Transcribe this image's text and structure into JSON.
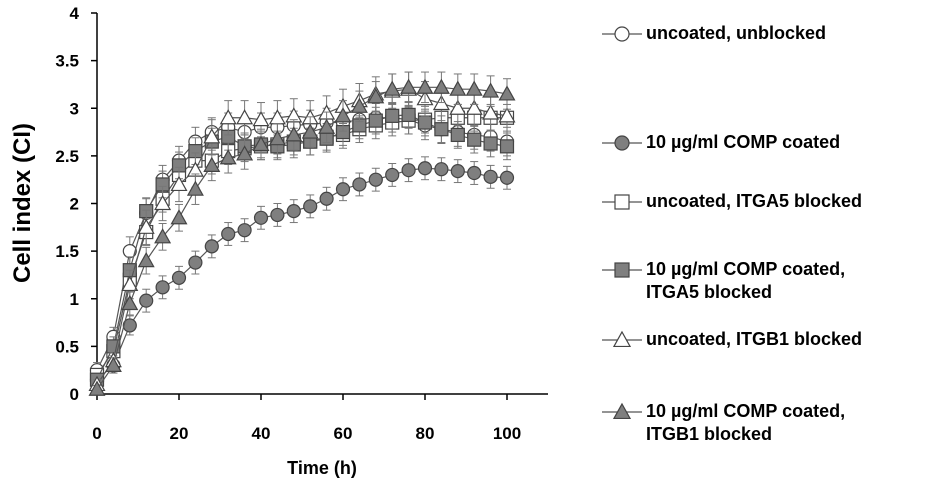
{
  "chart_data": {
    "type": "line",
    "xlabel": "Time (h)",
    "ylabel": "Cell index (CI)",
    "xlim": [
      0,
      110
    ],
    "ylim": [
      0,
      4
    ],
    "x_ticks": [
      0,
      20,
      40,
      60,
      80,
      100
    ],
    "y_ticks": [
      0,
      0.5,
      1,
      1.5,
      2,
      2.5,
      3,
      3.5,
      4
    ],
    "x_tick_labels": [
      "0",
      "20",
      "40",
      "60",
      "80",
      "100"
    ],
    "y_tick_labels": [
      "0",
      "0.5",
      "1",
      "1.5",
      "2",
      "2.5",
      "3",
      "3.5",
      "4"
    ],
    "grid": false,
    "legend_position": "right",
    "x": [
      0,
      4,
      8,
      12,
      16,
      20,
      24,
      28,
      32,
      36,
      40,
      44,
      48,
      52,
      56,
      60,
      64,
      68,
      72,
      76,
      80,
      84,
      88,
      92,
      96,
      100
    ],
    "series": [
      {
        "name": "uncoated, unblocked",
        "marker": "circle",
        "fill": "#ffffff",
        "values": [
          0.25,
          0.6,
          1.5,
          1.9,
          2.25,
          2.45,
          2.65,
          2.75,
          2.8,
          2.75,
          2.8,
          2.8,
          2.82,
          2.83,
          2.85,
          2.85,
          2.88,
          2.9,
          2.9,
          2.88,
          2.82,
          2.78,
          2.75,
          2.72,
          2.7,
          2.65
        ],
        "errors": [
          0.08,
          0.1,
          0.15,
          0.15,
          0.15,
          0.15,
          0.15,
          0.15,
          0.15,
          0.15,
          0.15,
          0.15,
          0.15,
          0.15,
          0.15,
          0.15,
          0.15,
          0.15,
          0.15,
          0.15,
          0.15,
          0.15,
          0.15,
          0.15,
          0.15,
          0.15
        ]
      },
      {
        "name": "10 µg/ml COMP coated",
        "marker": "circle",
        "fill": "#7f7f7f",
        "values": [
          0.15,
          0.3,
          0.72,
          0.98,
          1.12,
          1.22,
          1.38,
          1.55,
          1.68,
          1.72,
          1.85,
          1.88,
          1.92,
          1.97,
          2.05,
          2.15,
          2.2,
          2.25,
          2.3,
          2.35,
          2.37,
          2.36,
          2.34,
          2.32,
          2.28,
          2.27
        ],
        "errors": [
          0.05,
          0.08,
          0.1,
          0.12,
          0.12,
          0.12,
          0.12,
          0.12,
          0.12,
          0.12,
          0.12,
          0.12,
          0.12,
          0.12,
          0.12,
          0.12,
          0.12,
          0.12,
          0.12,
          0.12,
          0.12,
          0.12,
          0.12,
          0.12,
          0.12,
          0.12
        ]
      },
      {
        "name": "uncoated, ITGA5 blocked",
        "marker": "square",
        "fill": "#ffffff",
        "values": [
          0.2,
          0.45,
          1.2,
          1.7,
          2.05,
          2.3,
          2.45,
          2.45,
          2.55,
          2.58,
          2.6,
          2.62,
          2.65,
          2.65,
          2.7,
          2.72,
          2.78,
          2.82,
          2.85,
          2.87,
          2.88,
          2.9,
          2.9,
          2.9,
          2.9,
          2.9
        ],
        "errors": [
          0.06,
          0.08,
          0.12,
          0.14,
          0.14,
          0.14,
          0.14,
          0.14,
          0.14,
          0.14,
          0.14,
          0.14,
          0.14,
          0.14,
          0.14,
          0.14,
          0.14,
          0.14,
          0.14,
          0.14,
          0.14,
          0.14,
          0.14,
          0.14,
          0.14,
          0.14
        ]
      },
      {
        "name": "10 µg/ml COMP coated, ITGA5 blocked",
        "marker": "square",
        "fill": "#7f7f7f",
        "values": [
          0.15,
          0.5,
          1.3,
          1.92,
          2.2,
          2.4,
          2.55,
          2.65,
          2.7,
          2.6,
          2.62,
          2.6,
          2.62,
          2.65,
          2.68,
          2.75,
          2.82,
          2.87,
          2.92,
          2.93,
          2.85,
          2.78,
          2.72,
          2.67,
          2.63,
          2.6
        ],
        "errors": [
          0.06,
          0.1,
          0.14,
          0.14,
          0.14,
          0.14,
          0.14,
          0.14,
          0.14,
          0.14,
          0.14,
          0.14,
          0.14,
          0.14,
          0.14,
          0.14,
          0.14,
          0.14,
          0.14,
          0.14,
          0.14,
          0.14,
          0.14,
          0.14,
          0.14,
          0.14
        ]
      },
      {
        "name": "uncoated, ITGB1 blocked",
        "marker": "triangle",
        "fill": "#ffffff",
        "values": [
          0.1,
          0.35,
          1.15,
          1.75,
          2.0,
          2.2,
          2.35,
          2.7,
          2.9,
          2.9,
          2.88,
          2.9,
          2.92,
          2.9,
          2.95,
          3.02,
          3.08,
          3.15,
          3.18,
          3.2,
          3.1,
          3.05,
          3.0,
          3.0,
          2.95,
          2.92
        ],
        "errors": [
          0.05,
          0.08,
          0.15,
          0.18,
          0.18,
          0.18,
          0.18,
          0.18,
          0.18,
          0.18,
          0.18,
          0.18,
          0.18,
          0.18,
          0.18,
          0.18,
          0.18,
          0.18,
          0.18,
          0.18,
          0.18,
          0.18,
          0.18,
          0.18,
          0.18,
          0.18
        ]
      },
      {
        "name": "10 µg/ml COMP coated, ITGB1 blocked",
        "marker": "triangle",
        "fill": "#7f7f7f",
        "values": [
          0.05,
          0.3,
          0.95,
          1.4,
          1.65,
          1.85,
          2.15,
          2.4,
          2.48,
          2.52,
          2.62,
          2.68,
          2.72,
          2.75,
          2.8,
          2.92,
          3.02,
          3.12,
          3.2,
          3.22,
          3.22,
          3.22,
          3.2,
          3.2,
          3.18,
          3.15
        ],
        "errors": [
          0.04,
          0.08,
          0.12,
          0.14,
          0.14,
          0.14,
          0.16,
          0.16,
          0.16,
          0.16,
          0.16,
          0.16,
          0.16,
          0.16,
          0.16,
          0.16,
          0.16,
          0.16,
          0.16,
          0.16,
          0.16,
          0.16,
          0.16,
          0.16,
          0.16,
          0.16
        ]
      }
    ]
  },
  "legend": {
    "items": [
      "uncoated, unblocked",
      "10 µg/ml COMP coated",
      "uncoated, ITGA5 blocked",
      "10 µg/ml COMP coated,\nITGA5 blocked",
      "uncoated, ITGB1 blocked",
      "10 µg/ml COMP coated,\nITGB1 blocked"
    ]
  }
}
